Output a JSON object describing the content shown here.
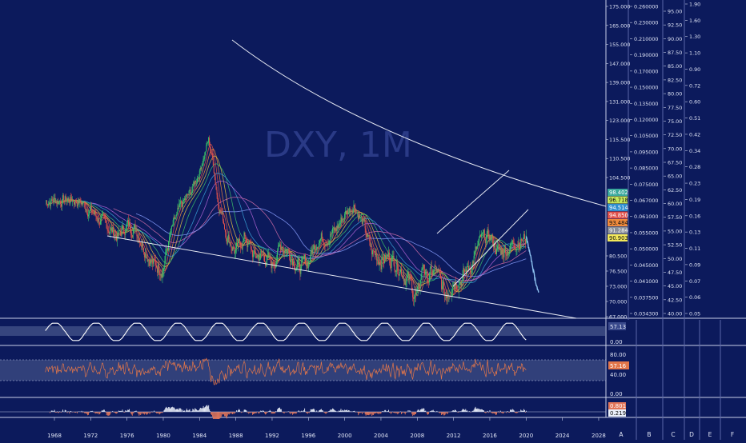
{
  "colors": {
    "background": "#0c1a5c",
    "price": "#e9eef8",
    "trendline": "#e5e8f2",
    "ma_palette": [
      "#e0524c",
      "#f08a3c",
      "#e6c642",
      "#3cc46a",
      "#3aa4d8",
      "#b264d6",
      "#d26ea8",
      "#8aa0ff"
    ],
    "osc1": "#ffffff",
    "osc2": "#e2764a",
    "macd_pos": "#e9eef8",
    "macd_neg": "#e2765a"
  },
  "watermark": "DXY, 1M",
  "scales": {
    "price_ticks": [
      "175.000",
      "165.000",
      "155.000",
      "147.000",
      "139.000",
      "131.000",
      "123.000",
      "115.500",
      "110.500",
      "104.500",
      "80.500",
      "76.500",
      "73.000",
      "70.000",
      "67.000"
    ],
    "scale2_ticks": [
      "0.260000",
      "0.230000",
      "0.210000",
      "0.190000",
      "0.170000",
      "0.150000",
      "0.135000",
      "0.120000",
      "0.105000",
      "0.095000",
      "0.085000",
      "0.075000",
      "0.067000",
      "0.061000",
      "0.055000",
      "0.050000",
      "0.045000",
      "0.041000",
      "0.037500",
      "0.034300"
    ],
    "scale3_ticks": [
      "95.00",
      "92.50",
      "90.00",
      "87.50",
      "85.00",
      "82.50",
      "80.00",
      "77.50",
      "75.00",
      "72.50",
      "70.00",
      "67.50",
      "65.00",
      "62.50",
      "60.00",
      "57.50",
      "55.00",
      "52.50",
      "50.00",
      "47.50",
      "45.00",
      "42.50",
      "40.00"
    ],
    "scale4_ticks": [
      "1.90",
      "1.60",
      "1.30",
      "1.10",
      "0.90",
      "0.72",
      "0.60",
      "0.51",
      "0.42",
      "0.34",
      "0.28",
      "0.23",
      "0.19",
      "0.16",
      "0.13",
      "0.11",
      "0.09",
      "0.07",
      "0.06",
      "0.05"
    ]
  },
  "price_labels": [
    {
      "text": "98.402",
      "bg": "#3aa89c",
      "fg": "#ffffff"
    },
    {
      "text": "96.718",
      "bg": "#c7e85a",
      "fg": "#111111"
    },
    {
      "text": "94.514",
      "bg": "#2f8fd0",
      "fg": "#ffffff"
    },
    {
      "text": "94.850",
      "bg": "#e0524c",
      "fg": "#ffffff"
    },
    {
      "text": "93.484",
      "bg": "#f08a3c",
      "fg": "#111111"
    },
    {
      "text": "91.284",
      "bg": "#8a8f99",
      "fg": "#ffffff"
    },
    {
      "text": "90.903",
      "bg": "#f2e85a",
      "fg": "#111111"
    }
  ],
  "pane_labels": {
    "osc1_value": "57.13",
    "osc1_zero": "0.00",
    "osc2_top": "80.00",
    "osc2_value": "57.16",
    "osc2_bottom": "40.00",
    "osc2_zero": "0.00",
    "macd_value1": "0.801",
    "macd_value2": "0.219"
  },
  "x_axis_ticks": [
    "1968",
    "1972",
    "1976",
    "1980",
    "1984",
    "1988",
    "1992",
    "1996",
    "2000",
    "2004",
    "2008",
    "2012",
    "2016",
    "2020",
    "2024",
    "2028"
  ],
  "right_columns": [
    "A",
    "B",
    "C",
    "D",
    "E",
    "F"
  ],
  "chart_data": {
    "type": "line",
    "symbol": "DXY",
    "interval": "1M",
    "series": [
      {
        "x": [
          1967,
          1970,
          1971,
          1973,
          1975,
          1976,
          1977,
          1978,
          1979,
          1980,
          1981,
          1982,
          1983,
          1984,
          1985,
          1985.5,
          1986,
          1987,
          1988,
          1989,
          1990,
          1991,
          1992,
          1993,
          1994,
          1995,
          1996,
          1997,
          1998,
          1999,
          2000,
          2001,
          2002,
          2003,
          2004,
          2005,
          2006,
          2007,
          2008,
          2008.7,
          2009,
          2010,
          2011,
          2012,
          2013,
          2014,
          2015,
          2016,
          2017,
          2018,
          2019,
          2020,
          2020.6,
          2021
        ],
        "y": [
          120,
          121,
          119,
          109,
          100,
          106,
          104,
          94,
          86,
          86,
          104,
          117,
          125,
          140,
          164,
          146,
          121,
          101,
          92,
          100,
          90,
          91,
          86,
          96,
          92,
          85,
          88,
          99,
          100,
          103,
          112,
          118,
          107,
          92,
          89,
          90,
          86,
          80,
          72,
          88,
          80,
          84,
          74,
          80,
          81,
          87,
          98,
          100,
          92,
          94,
          98,
          99,
          92,
          84
        ]
      }
    ],
    "projection": {
      "x": [
        2020,
        2020.5,
        2021,
        2021.4
      ],
      "y": [
        100,
        90,
        80,
        74
      ]
    },
    "y_ticks": [
      175.0,
      165.0,
      155.0,
      147.0,
      139.0,
      131.0,
      123.0,
      115.5,
      110.5,
      104.5,
      80.5,
      76.5,
      73.0,
      70.0,
      67.0
    ],
    "x_ticks": [
      1968,
      1972,
      1976,
      1980,
      1984,
      1988,
      1992,
      1996,
      2000,
      2004,
      2008,
      2012,
      2016,
      2020,
      2024,
      2028
    ],
    "xlim": [
      1962,
      2028.8
    ],
    "grid": false
  }
}
